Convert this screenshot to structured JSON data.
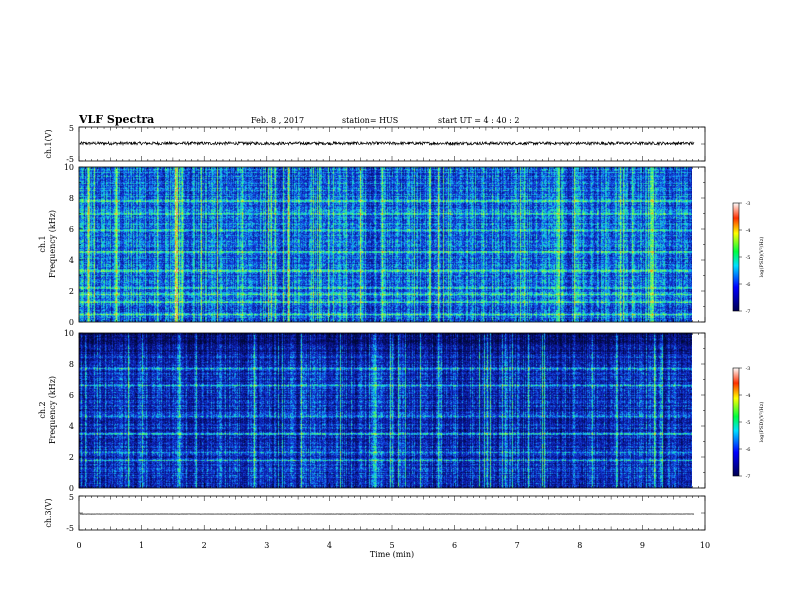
{
  "header": {
    "title": "VLF Spectra",
    "date": "Feb. 8 , 2017",
    "station": "station= HUS",
    "start_ut": "start UT = 4 : 40 : 2"
  },
  "colors": {
    "spectrum_low": "#000a3c",
    "spectrum_mid": "#1a40d8",
    "spectrum_hi": "#22e8e0",
    "spectrum_line": "#40f070",
    "spectrum_peak": "#c8ff40",
    "trace": "#000000"
  },
  "chart_data": [
    {
      "type": "line",
      "name": "ch1-waveform",
      "ylabel": "ch.1(V)",
      "ylim": [
        -5,
        5
      ],
      "yticks": [
        "5",
        "-5"
      ],
      "approx_level": 0.2
    },
    {
      "type": "heatmap",
      "name": "ch1-spectrogram",
      "ylabel_top": "ch.1",
      "ylabel": "Frequency (kHz)",
      "ylim": [
        0,
        10
      ],
      "yticks": [
        "0",
        "2",
        "4",
        "6",
        "8",
        "10"
      ],
      "colorbar": {
        "label": "log(PSD)(V²/Hz)",
        "range": [
          -7,
          -3
        ],
        "ticks": [
          "-3",
          "-4",
          "-5",
          "-6",
          "-7"
        ]
      },
      "bright_bands_khz": [
        0.5,
        1.3,
        1.8,
        2.2,
        3.3,
        4.5,
        5.9,
        7.0,
        7.8
      ],
      "bright_times_min": [
        0.15,
        0.6,
        1.55,
        1.65,
        3.35,
        4.5,
        5.6,
        5.75,
        7.65,
        9.15
      ]
    },
    {
      "type": "heatmap",
      "name": "ch2-spectrogram",
      "ylabel_top": "ch.2",
      "ylabel": "Frequency (kHz)",
      "ylim": [
        0,
        10
      ],
      "yticks": [
        "0",
        "2",
        "4",
        "6",
        "8",
        "10"
      ],
      "colorbar": {
        "label": "log(PSD)(V²/Hz)",
        "range": [
          -7,
          -3
        ],
        "ticks": [
          "-3",
          "-4",
          "-5",
          "-6",
          "-7"
        ]
      },
      "bright_bands_khz": [
        1.8,
        2.3,
        3.5,
        4.6,
        6.6,
        7.7
      ],
      "bright_times_min": [
        0.8,
        1.6,
        2.8,
        3.55,
        4.7,
        4.75,
        5.75,
        8.2,
        9.2,
        9.3
      ]
    },
    {
      "type": "line",
      "name": "ch3-waveform",
      "ylabel": "ch.3(V)",
      "ylim": [
        -5,
        5
      ],
      "yticks": [
        "5",
        "-5"
      ],
      "approx_level": -0.3
    }
  ],
  "xaxis": {
    "label": "Time (min)",
    "xlim": [
      0,
      10
    ],
    "ticks": [
      "0",
      "1",
      "2",
      "3",
      "4",
      "5",
      "6",
      "7",
      "8",
      "9",
      "10"
    ],
    "data_end_min": 9.83
  }
}
